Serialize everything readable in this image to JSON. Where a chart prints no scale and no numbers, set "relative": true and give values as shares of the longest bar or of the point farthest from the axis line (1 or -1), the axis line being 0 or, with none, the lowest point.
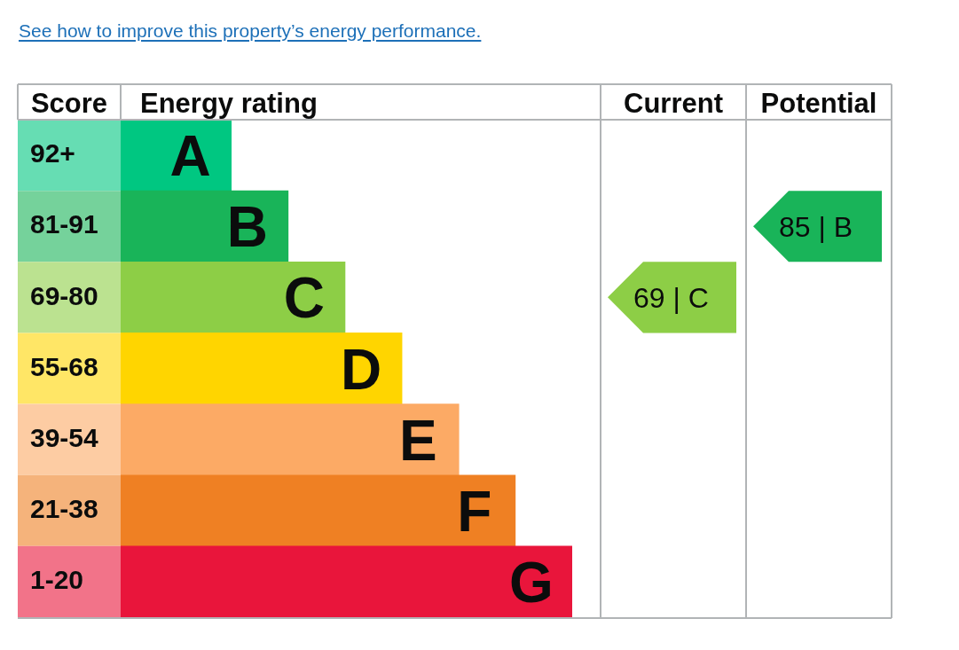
{
  "chart_data": [
    {
      "type": "bar",
      "orientation": "horizontal",
      "relative": true,
      "title": "See how to improve this property’s energy performance.",
      "ylabel": "Score",
      "xlabel": "Energy rating",
      "categories": [
        "92+",
        "81-91",
        "69-80",
        "55-68",
        "39-54",
        "21-38",
        "1-20"
      ],
      "values": [
        0.245,
        0.371,
        0.497,
        0.623,
        0.749,
        0.874,
        1
      ],
      "colors": [
        "#00c781",
        "#19b459",
        "#8dce46",
        "#ffd500",
        "#fcaa65",
        "#ef8023",
        "#e9153b"
      ],
      "annotations": [
        {
          "text": "A",
          "x": 0.245,
          "y": "92+"
        },
        {
          "text": "B",
          "x": 0.371,
          "y": "81-91"
        },
        {
          "text": "C",
          "x": 0.497,
          "y": "69-80"
        },
        {
          "text": "D",
          "x": 0.623,
          "y": "55-68"
        },
        {
          "text": "E",
          "x": 0.749,
          "y": "39-54"
        },
        {
          "text": "F",
          "x": 0.874,
          "y": "21-38"
        },
        {
          "text": "G",
          "x": 1,
          "y": "1-20"
        }
      ]
    },
    {
      "type": "heatmap",
      "categories": [
        "Current",
        "Potential"
      ],
      "y_categories": [
        "92+",
        "81-91",
        "69-80",
        "55-68",
        "39-54",
        "21-38",
        "1-20"
      ],
      "cells": [
        [
          null,
          null
        ],
        [
          null,
          85
        ],
        [
          69,
          null
        ],
        [
          null,
          null
        ],
        [
          null,
          null
        ],
        [
          null,
          null
        ],
        [
          null,
          null
        ]
      ],
      "cell_labels": [
        [
          null,
          null
        ],
        [
          null,
          "85 | B"
        ],
        [
          "69 | C",
          null
        ],
        [
          null,
          null
        ],
        [
          null,
          null
        ],
        [
          null,
          null
        ],
        [
          null,
          null
        ]
      ],
      "tick_labels": "x"
    }
  ]
}
